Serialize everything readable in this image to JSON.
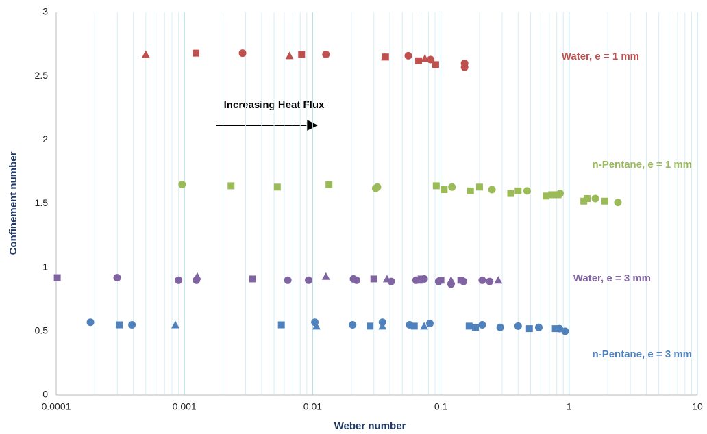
{
  "chart_data": {
    "type": "scatter",
    "x_label": "Weber number",
    "y_label": "Confinement number",
    "annotation": "Increasing Heat Flux",
    "xlog": true,
    "grid": true,
    "xlim": [
      0.0001,
      10
    ],
    "xticks": [
      0.0001,
      0.001,
      0.01,
      0.1,
      1,
      10
    ],
    "ylim": [
      0,
      3
    ],
    "yticks": [
      0,
      0.5,
      1,
      1.5,
      2,
      2.5,
      3
    ],
    "series": [
      {
        "name": "Water, e = 1 mm",
        "color": "#c0504d",
        "x": [
          0.0005,
          0.0066,
          0.0366,
          0.075,
          0.00123,
          0.0082,
          0.037,
          0.067,
          0.091,
          0.00284,
          0.0127,
          0.0557,
          0.083,
          0.153,
          0.153
        ],
        "values": [
          2.67,
          2.66,
          2.65,
          2.64,
          2.68,
          2.67,
          2.65,
          2.62,
          2.59,
          2.68,
          2.67,
          2.66,
          2.63,
          2.6,
          2.57
        ],
        "markers": [
          "triangle",
          "triangle",
          "triangle",
          "triangle",
          "square",
          "square",
          "square",
          "square",
          "square",
          "circle",
          "circle",
          "circle",
          "circle",
          "circle",
          "circle"
        ]
      },
      {
        "name": "n-Pentane, e = 1 mm",
        "color": "#9bbb59",
        "x": [
          0.00231,
          0.0053,
          0.0134,
          0.092,
          0.106,
          0.17,
          0.2,
          0.35,
          0.4,
          0.66,
          0.73,
          0.82,
          1.3,
          1.38,
          1.9,
          0.00096,
          0.031,
          0.032,
          0.122,
          0.25,
          0.47,
          0.85,
          1.6,
          2.4
        ],
        "values": [
          1.64,
          1.63,
          1.65,
          1.64,
          1.61,
          1.6,
          1.63,
          1.58,
          1.6,
          1.56,
          1.57,
          1.57,
          1.52,
          1.54,
          1.52,
          1.65,
          1.62,
          1.63,
          1.63,
          1.61,
          1.6,
          1.58,
          1.54,
          1.51
        ],
        "markers": [
          "square",
          "square",
          "square",
          "square",
          "square",
          "square",
          "square",
          "square",
          "square",
          "square",
          "square",
          "square",
          "square",
          "square",
          "square",
          "circle",
          "circle",
          "circle",
          "circle",
          "circle",
          "circle",
          "circle",
          "circle",
          "circle"
        ]
      },
      {
        "name": "Water, e = 3 mm",
        "color": "#8064a2",
        "x": [
          0.000102,
          0.0034,
          0.03,
          0.07,
          0.1,
          0.143,
          0.000299,
          0.0009,
          0.00124,
          0.0064,
          0.0093,
          0.0208,
          0.022,
          0.041,
          0.064,
          0.074,
          0.096,
          0.12,
          0.15,
          0.21,
          0.24,
          0.00126,
          0.0127,
          0.038,
          0.068,
          0.12,
          0.28
        ],
        "values": [
          0.92,
          0.91,
          0.91,
          0.91,
          0.9,
          0.9,
          0.92,
          0.9,
          0.9,
          0.9,
          0.9,
          0.91,
          0.9,
          0.89,
          0.9,
          0.91,
          0.89,
          0.87,
          0.89,
          0.9,
          0.89,
          0.93,
          0.93,
          0.91,
          0.9,
          0.9,
          0.9
        ],
        "markers": [
          "square",
          "square",
          "square",
          "square",
          "square",
          "square",
          "circle",
          "circle",
          "circle",
          "circle",
          "circle",
          "circle",
          "circle",
          "circle",
          "circle",
          "circle",
          "circle",
          "circle",
          "circle",
          "circle",
          "circle",
          "triangle",
          "triangle",
          "triangle",
          "triangle",
          "triangle",
          "triangle"
        ]
      },
      {
        "name": "n-Pentane, e = 3 mm",
        "color": "#4f81bd",
        "x": [
          0.000185,
          0.00039,
          0.0104,
          0.0205,
          0.035,
          0.057,
          0.082,
          0.21,
          0.29,
          0.4,
          0.58,
          0.84,
          0.93,
          0.00031,
          0.0057,
          0.028,
          0.062,
          0.166,
          0.186,
          0.49,
          0.78,
          0.00085,
          0.0107,
          0.035,
          0.074
        ],
        "values": [
          0.57,
          0.55,
          0.57,
          0.55,
          0.57,
          0.55,
          0.56,
          0.55,
          0.53,
          0.54,
          0.53,
          0.52,
          0.5,
          0.55,
          0.55,
          0.54,
          0.54,
          0.54,
          0.53,
          0.52,
          0.52,
          0.55,
          0.54,
          0.54,
          0.54
        ],
        "markers": [
          "circle",
          "circle",
          "circle",
          "circle",
          "circle",
          "circle",
          "circle",
          "circle",
          "circle",
          "circle",
          "circle",
          "circle",
          "circle",
          "square",
          "square",
          "square",
          "square",
          "square",
          "square",
          "square",
          "square",
          "triangle",
          "triangle",
          "triangle",
          "triangle"
        ]
      }
    ]
  }
}
